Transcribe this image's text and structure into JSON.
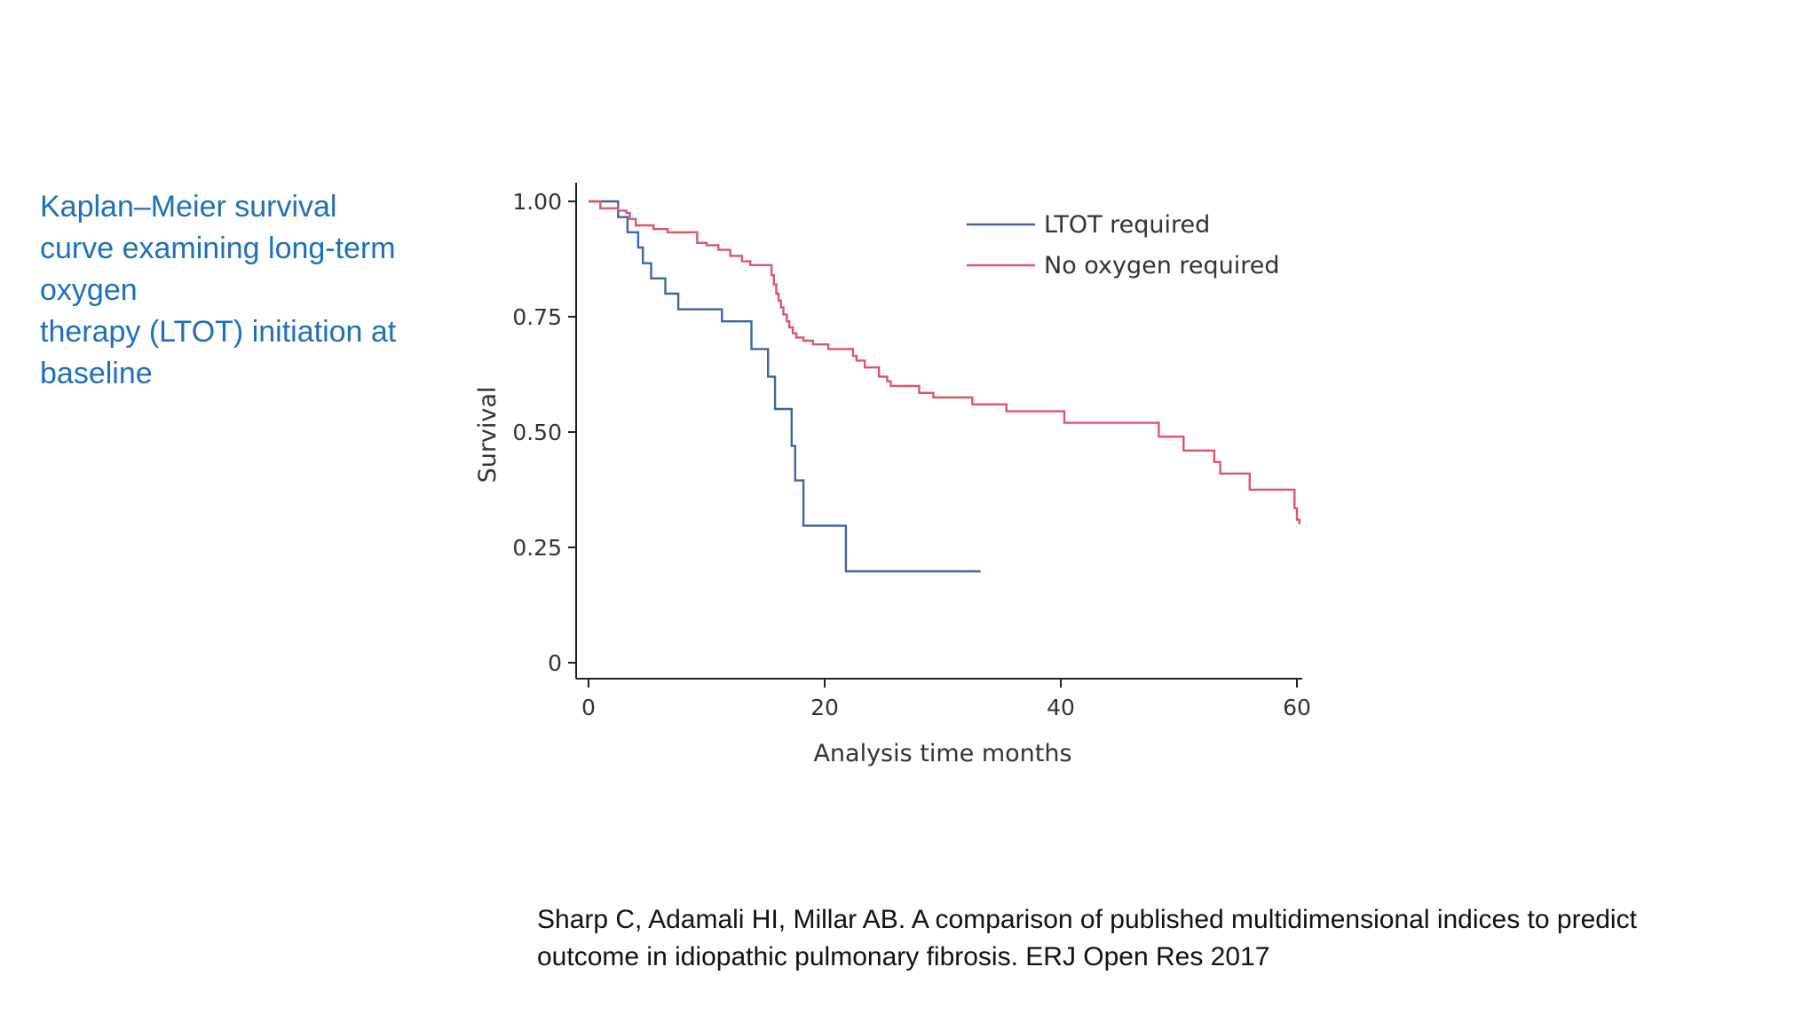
{
  "slide": {
    "title_lines": [
      "Kaplan–Meier survival",
      "curve examining long-term",
      "oxygen",
      "therapy (LTOT) initiation at",
      "baseline"
    ],
    "citation_lines": [
      "Sharp C, Adamali HI, Millar AB. A comparison of published multidimensional indices to predict",
      "outcome in idiopathic pulmonary fibrosis. ERJ Open Res 2017"
    ]
  },
  "chart_data": {
    "type": "line",
    "step": true,
    "title": "",
    "xlabel": "Analysis time months",
    "ylabel": "Survival",
    "xlim": [
      0,
      60
    ],
    "ylim": [
      0,
      1
    ],
    "x_ticks": [
      0,
      20,
      40,
      60
    ],
    "x_tick_labels": [
      "0",
      "20",
      "40",
      "60"
    ],
    "y_ticks": [
      0,
      0.25,
      0.5,
      0.75,
      1.0
    ],
    "y_tick_labels": [
      "0",
      "0.25",
      "0.50",
      "0.75",
      "1.00"
    ],
    "legend_position": "top-right",
    "series": [
      {
        "name": "LTOT required",
        "color": "#3f63a8",
        "x": [
          0,
          2.5,
          3.3,
          4.2,
          4.6,
          5.3,
          6.5,
          7.6,
          11.3,
          13.8,
          15.2,
          15.8,
          17.2,
          17.5,
          18.2,
          21.8,
          33.2
        ],
        "y": [
          1.0,
          0.966,
          0.933,
          0.9,
          0.866,
          0.833,
          0.8,
          0.766,
          0.74,
          0.68,
          0.62,
          0.55,
          0.47,
          0.395,
          0.297,
          0.198,
          0.198
        ]
      },
      {
        "name": "No oxygen required",
        "color": "#d9566e",
        "x": [
          0,
          1.0,
          2.5,
          3.2,
          3.5,
          4.0,
          5.5,
          6.7,
          9.2,
          10.0,
          11.0,
          12.0,
          13.0,
          13.7,
          15.5,
          15.7,
          15.9,
          16.1,
          16.3,
          16.5,
          16.8,
          17.0,
          17.3,
          17.6,
          18.2,
          19.0,
          20.3,
          22.4,
          22.7,
          23.4,
          24.6,
          25.3,
          25.6,
          28.0,
          29.2,
          32.5,
          35.4,
          40.3,
          48.3,
          50.4,
          53.0,
          53.5,
          56.0,
          59.8,
          60.0,
          60.2
        ],
        "y": [
          1.0,
          0.985,
          0.98,
          0.975,
          0.962,
          0.948,
          0.94,
          0.933,
          0.91,
          0.905,
          0.895,
          0.882,
          0.87,
          0.862,
          0.84,
          0.82,
          0.8,
          0.785,
          0.77,
          0.755,
          0.74,
          0.727,
          0.714,
          0.705,
          0.698,
          0.69,
          0.68,
          0.665,
          0.655,
          0.64,
          0.62,
          0.61,
          0.6,
          0.585,
          0.575,
          0.56,
          0.545,
          0.52,
          0.49,
          0.46,
          0.435,
          0.41,
          0.375,
          0.335,
          0.31,
          0.3
        ]
      }
    ]
  }
}
